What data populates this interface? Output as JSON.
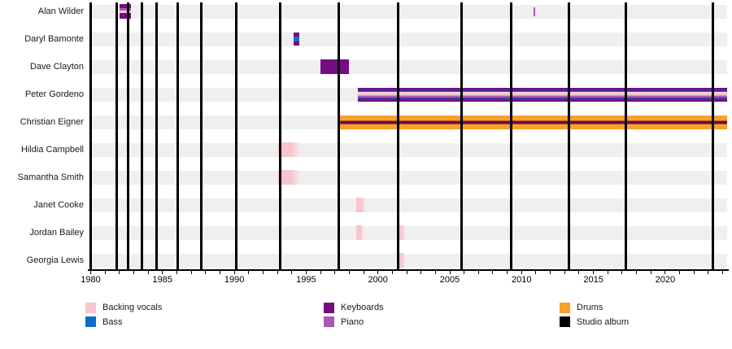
{
  "chart_data": {
    "type": "timeline",
    "x_axis": {
      "start": 1980,
      "tick_end": 2024,
      "end_extent": 2024.3,
      "tick_interval": 1,
      "label_interval": 5,
      "label_years": [
        1980,
        1985,
        1990,
        1995,
        2000,
        2005,
        2010,
        2015,
        2020
      ]
    },
    "colors": {
      "backing_vocals": "#f9c4cd",
      "bass": "#0d6bca",
      "keyboards": "#750c80",
      "piano": "#a85ab4",
      "drums": "#f7a12b",
      "studio_album": "#000000",
      "indigo_blend": "#4636a0",
      "drums_dark_blend": "#6f0a47",
      "white_sep": "#fbeaf0"
    },
    "stripe_sets": {
      "wilder": [
        [
          "keyboards",
          0.28
        ],
        [
          "piano",
          0.17
        ],
        [
          "backing_vocals",
          0.17
        ],
        [
          "keyboards",
          0.38
        ]
      ],
      "bamonte": [
        [
          "keyboards",
          0.31
        ],
        [
          "bass",
          0.38
        ],
        [
          "keyboards",
          0.31
        ]
      ],
      "keyboards_solid": [
        [
          "keyboards",
          1
        ]
      ],
      "gordeno": [
        [
          "keyboards",
          0.15
        ],
        [
          "indigo_blend",
          0.15
        ],
        [
          "white_sep",
          0.06
        ],
        [
          "backing_vocals",
          0.2
        ],
        [
          "piano",
          0.15
        ],
        [
          "indigo_blend",
          0.15
        ],
        [
          "keyboards",
          0.14
        ]
      ],
      "eigner": [
        [
          "drums",
          0.38
        ],
        [
          "drums_dark_blend",
          0.24
        ],
        [
          "drums",
          0.38
        ]
      ],
      "backing": [
        [
          "backing_vocals",
          1
        ]
      ],
      "piano_tick": [
        [
          "piano",
          1
        ]
      ]
    },
    "rows": [
      {
        "name": "Alan Wilder",
        "roles": [
          "Keyboards",
          "Piano",
          "Backing vocals"
        ],
        "bars": [
          {
            "start": 1982.0,
            "end": 1982.8,
            "stripes": "wilder",
            "h": 18
          },
          {
            "start": 2010.85,
            "end": 2010.97,
            "stripes": "piano_tick",
            "h": 11
          }
        ]
      },
      {
        "name": "Daryl Bamonte",
        "roles": [
          "Keyboards",
          "Bass"
        ],
        "bars": [
          {
            "start": 1994.1,
            "end": 1994.5,
            "stripes": "bamonte",
            "h": 16
          }
        ]
      },
      {
        "name": "Dave Clayton",
        "roles": [
          "Keyboards"
        ],
        "bars": [
          {
            "start": 1996.0,
            "end": 1998.0,
            "stripes": "keyboards_solid",
            "h": 18
          }
        ]
      },
      {
        "name": "Peter Gordeno",
        "roles": [
          "Keyboards",
          "Piano",
          "Bass",
          "Backing vocals"
        ],
        "bars": [
          {
            "start": 1998.6,
            "end": 2024.3,
            "stripes": "gordeno",
            "h": 17
          }
        ]
      },
      {
        "name": "Christian Eigner",
        "roles": [
          "Drums",
          "Keyboards"
        ],
        "bars": [
          {
            "start": 1997.2,
            "end": 2024.3,
            "stripes": "eigner",
            "h": 17
          }
        ]
      },
      {
        "name": "Hildia Campbell",
        "roles": [
          "Backing vocals"
        ],
        "bars": [
          {
            "start": 1993.05,
            "end": 1994.6,
            "stripes": "backing",
            "h": 18,
            "fade": true
          }
        ]
      },
      {
        "name": "Samantha Smith",
        "roles": [
          "Backing vocals"
        ],
        "bars": [
          {
            "start": 1993.05,
            "end": 1994.6,
            "stripes": "backing",
            "h": 18,
            "fade": true
          }
        ]
      },
      {
        "name": "Janet Cooke",
        "roles": [
          "Backing vocals"
        ],
        "bars": [
          {
            "start": 1998.5,
            "end": 1999.1,
            "stripes": "backing",
            "h": 18,
            "fade": true
          }
        ]
      },
      {
        "name": "Jordan Bailey",
        "roles": [
          "Backing vocals"
        ],
        "bars": [
          {
            "start": 1998.5,
            "end": 1999.0,
            "stripes": "backing",
            "h": 18,
            "fade": true
          },
          {
            "start": 2001.35,
            "end": 2001.9,
            "stripes": "backing",
            "h": 18,
            "fade": true
          }
        ]
      },
      {
        "name": "Georgia Lewis",
        "roles": [
          "Backing vocals"
        ],
        "bars": [
          {
            "start": 2001.35,
            "end": 2001.9,
            "stripes": "backing",
            "h": 18,
            "fade": true
          }
        ]
      }
    ],
    "albums": [
      1981.8,
      1982.6,
      1983.55,
      1984.6,
      1986.05,
      1987.7,
      1990.15,
      1993.2,
      1997.25,
      2001.4,
      2005.8,
      2009.3,
      2013.3,
      2017.25,
      2023.3
    ]
  },
  "legend": {
    "columns": [
      {
        "items": [
          {
            "label": "Backing vocals",
            "color": "backing_vocals"
          },
          {
            "label": "Bass",
            "color": "bass"
          }
        ]
      },
      {
        "items": [
          {
            "label": "Keyboards",
            "color": "keyboards"
          },
          {
            "label": "Piano",
            "color": "piano"
          }
        ]
      },
      {
        "items": [
          {
            "label": "Drums",
            "color": "drums"
          },
          {
            "label": "Studio album",
            "color": "studio_album"
          }
        ]
      }
    ]
  }
}
